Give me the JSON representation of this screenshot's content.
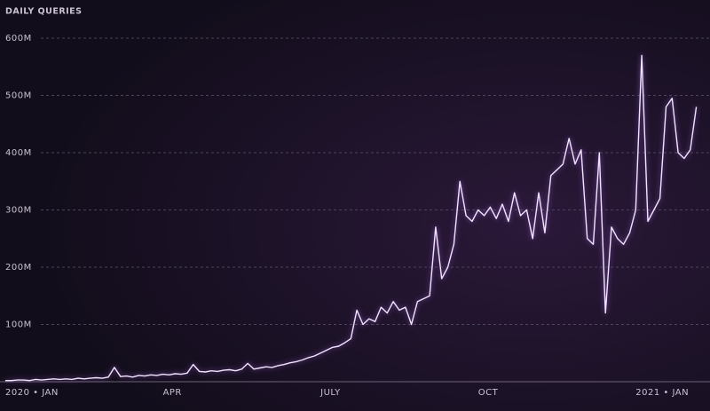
{
  "chart_data": {
    "type": "line",
    "title": "DAILY QUERIES",
    "categories": [
      "2020 • JAN",
      null,
      null,
      null,
      null,
      null,
      null,
      null,
      null,
      null,
      null,
      null,
      null,
      null,
      null,
      null,
      null,
      null,
      null,
      null,
      null,
      null,
      null,
      null,
      null,
      null,
      "APR",
      null,
      null,
      null,
      null,
      null,
      null,
      null,
      null,
      null,
      null,
      null,
      null,
      null,
      null,
      null,
      null,
      null,
      null,
      null,
      null,
      null,
      null,
      null,
      null,
      null,
      "JULY",
      null,
      null,
      null,
      null,
      null,
      null,
      null,
      null,
      null,
      null,
      null,
      null,
      null,
      null,
      null,
      null,
      null,
      null,
      null,
      null,
      null,
      null,
      null,
      null,
      null,
      "OCT",
      null,
      null,
      null,
      null,
      null,
      null,
      null,
      null,
      null,
      null,
      null,
      null,
      null,
      null,
      null,
      null,
      null,
      null,
      null,
      null,
      null,
      null,
      null,
      null,
      null,
      "2021 • JAN",
      null,
      null,
      null,
      null,
      null,
      null,
      null,
      null,
      null,
      null
    ],
    "series": [
      {
        "name": "Daily queries",
        "color": "#efe4fb",
        "values": [
          2,
          2,
          3,
          3,
          2,
          4,
          3,
          4,
          5,
          4,
          5,
          4,
          6,
          5,
          6,
          7,
          6,
          8,
          25,
          9,
          10,
          8,
          11,
          10,
          12,
          11,
          13,
          12,
          14,
          13,
          15,
          30,
          18,
          17,
          19,
          18,
          20,
          21,
          19,
          22,
          32,
          22,
          24,
          26,
          25,
          28,
          30,
          33,
          35,
          38,
          42,
          45,
          50,
          55,
          60,
          62,
          68,
          75,
          125,
          100,
          110,
          105,
          130,
          120,
          140,
          125,
          130,
          100,
          140,
          145,
          150,
          270,
          180,
          200,
          240,
          350,
          290,
          280,
          300,
          290,
          305,
          285,
          310,
          280,
          330,
          290,
          300,
          250,
          330,
          260,
          360,
          370,
          380,
          425,
          380,
          405,
          250,
          240,
          400,
          120,
          270,
          250,
          240,
          260,
          300,
          570,
          280,
          300,
          320,
          480,
          495,
          400,
          390,
          405,
          480
        ]
      }
    ],
    "ylim": [
      0,
      650
    ],
    "yticks": [
      {
        "value": 100,
        "label": "100M"
      },
      {
        "value": 200,
        "label": "200M"
      },
      {
        "value": 300,
        "label": "300M"
      },
      {
        "value": 400,
        "label": "400M"
      },
      {
        "value": 500,
        "label": "500M"
      },
      {
        "value": 600,
        "label": "600M"
      }
    ],
    "grid": true
  }
}
